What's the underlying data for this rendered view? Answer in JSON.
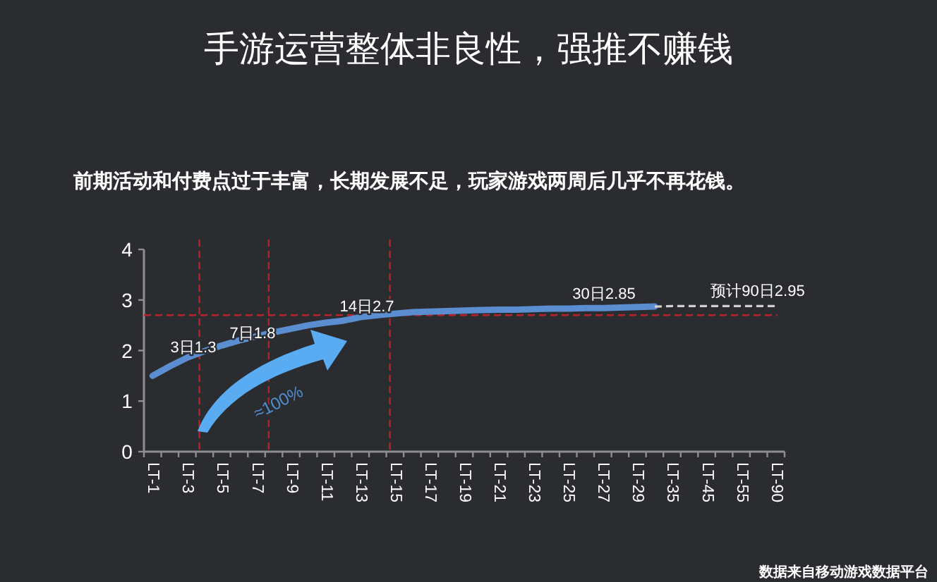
{
  "chart_data": {
    "type": "line",
    "title": "手游运营整体非良性，强推不赚钱",
    "subtitle": "前期活动和付费点过于丰富，长期发展不足，玩家游戏两周后几乎不再花钱。",
    "categories": [
      "LT-1",
      null,
      "LT-3",
      null,
      "LT-5",
      null,
      "LT-7",
      null,
      "LT-9",
      null,
      "LT-11",
      null,
      "LT-13",
      null,
      "LT-15",
      null,
      "LT-17",
      null,
      "LT-19",
      null,
      "LT-21",
      null,
      "LT-23",
      null,
      "LT-25",
      null,
      "LT-27",
      null,
      "LT-29",
      null,
      "LT-35",
      null,
      "LT-45",
      null,
      "LT-55",
      null,
      "LT-90"
    ],
    "series": [
      {
        "color": "#5a8ed0",
        "values": [
          1.5,
          1.69,
          1.86,
          1.99,
          2.1,
          2.2,
          2.28,
          2.36,
          2.43,
          2.5,
          2.55,
          2.59,
          2.66,
          2.7,
          2.73,
          2.76,
          2.77,
          2.78,
          2.79,
          2.8,
          2.81,
          2.81,
          2.82,
          2.83,
          2.83,
          2.84,
          2.84,
          2.85,
          2.86,
          2.87,
          null,
          null,
          null,
          null,
          null,
          null,
          null
        ]
      },
      {
        "color": "#d0d0d0",
        "line_style": "dashed",
        "values": [
          null,
          null,
          null,
          null,
          null,
          null,
          null,
          null,
          null,
          null,
          null,
          null,
          null,
          null,
          null,
          null,
          null,
          null,
          null,
          null,
          null,
          null,
          null,
          null,
          null,
          null,
          null,
          null,
          null,
          2.87,
          2.88,
          2.88,
          2.88,
          2.88,
          2.88,
          2.88,
          2.88
        ]
      }
    ],
    "ylim": [
      0,
      4
    ],
    "yticks": [
      0,
      1,
      2,
      3,
      4
    ],
    "ref_lines": [
      {
        "axis": "y",
        "value": 2.7,
        "color": "#b8232b",
        "line_style": "dashed"
      }
    ],
    "annotations": [
      "3日1.3",
      "7日1.8",
      "14日2.7",
      "30日2.85",
      "预计90日2.95",
      "≈100%",
      "数据来自移动游戏数据平台"
    ],
    "grid": false,
    "marker": "none",
    "line_style": "solid"
  }
}
